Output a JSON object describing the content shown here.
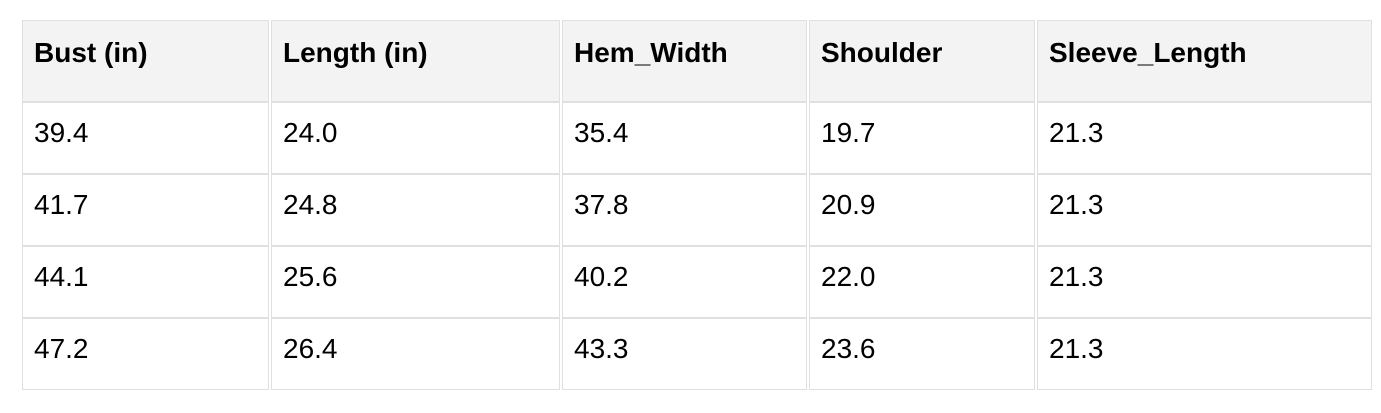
{
  "colors": {
    "header_bg": "#f3f3f3",
    "cell_bg": "#ffffff",
    "border": "#e0e0e0",
    "text": "#000000",
    "page_bg": "#ffffff"
  },
  "table": {
    "columns": [
      "Bust (in)",
      "Length (in)",
      "Hem_Width",
      "Shoulder",
      "Sleeve_Length"
    ],
    "rows": [
      [
        "39.4",
        "24.0",
        "35.4",
        "19.7",
        "21.3"
      ],
      [
        "41.7",
        "24.8",
        "37.8",
        "20.9",
        "21.3"
      ],
      [
        "44.1",
        "25.6",
        "40.2",
        "22.0",
        "21.3"
      ],
      [
        "47.2",
        "26.4",
        "43.3",
        "23.6",
        "21.3"
      ]
    ]
  },
  "chart_data": {
    "type": "table",
    "title": "",
    "columns": [
      "Bust (in)",
      "Length (in)",
      "Hem_Width",
      "Shoulder",
      "Sleeve_Length"
    ],
    "rows": [
      [
        39.4,
        24.0,
        35.4,
        19.7,
        21.3
      ],
      [
        41.7,
        24.8,
        37.8,
        20.9,
        21.3
      ],
      [
        44.1,
        25.6,
        40.2,
        22.0,
        21.3
      ],
      [
        47.2,
        26.4,
        43.3,
        23.6,
        21.3
      ]
    ],
    "layout_hints": {
      "header_background": "#f3f3f3",
      "grid": true,
      "header_bold": true,
      "text_align": "left"
    }
  }
}
